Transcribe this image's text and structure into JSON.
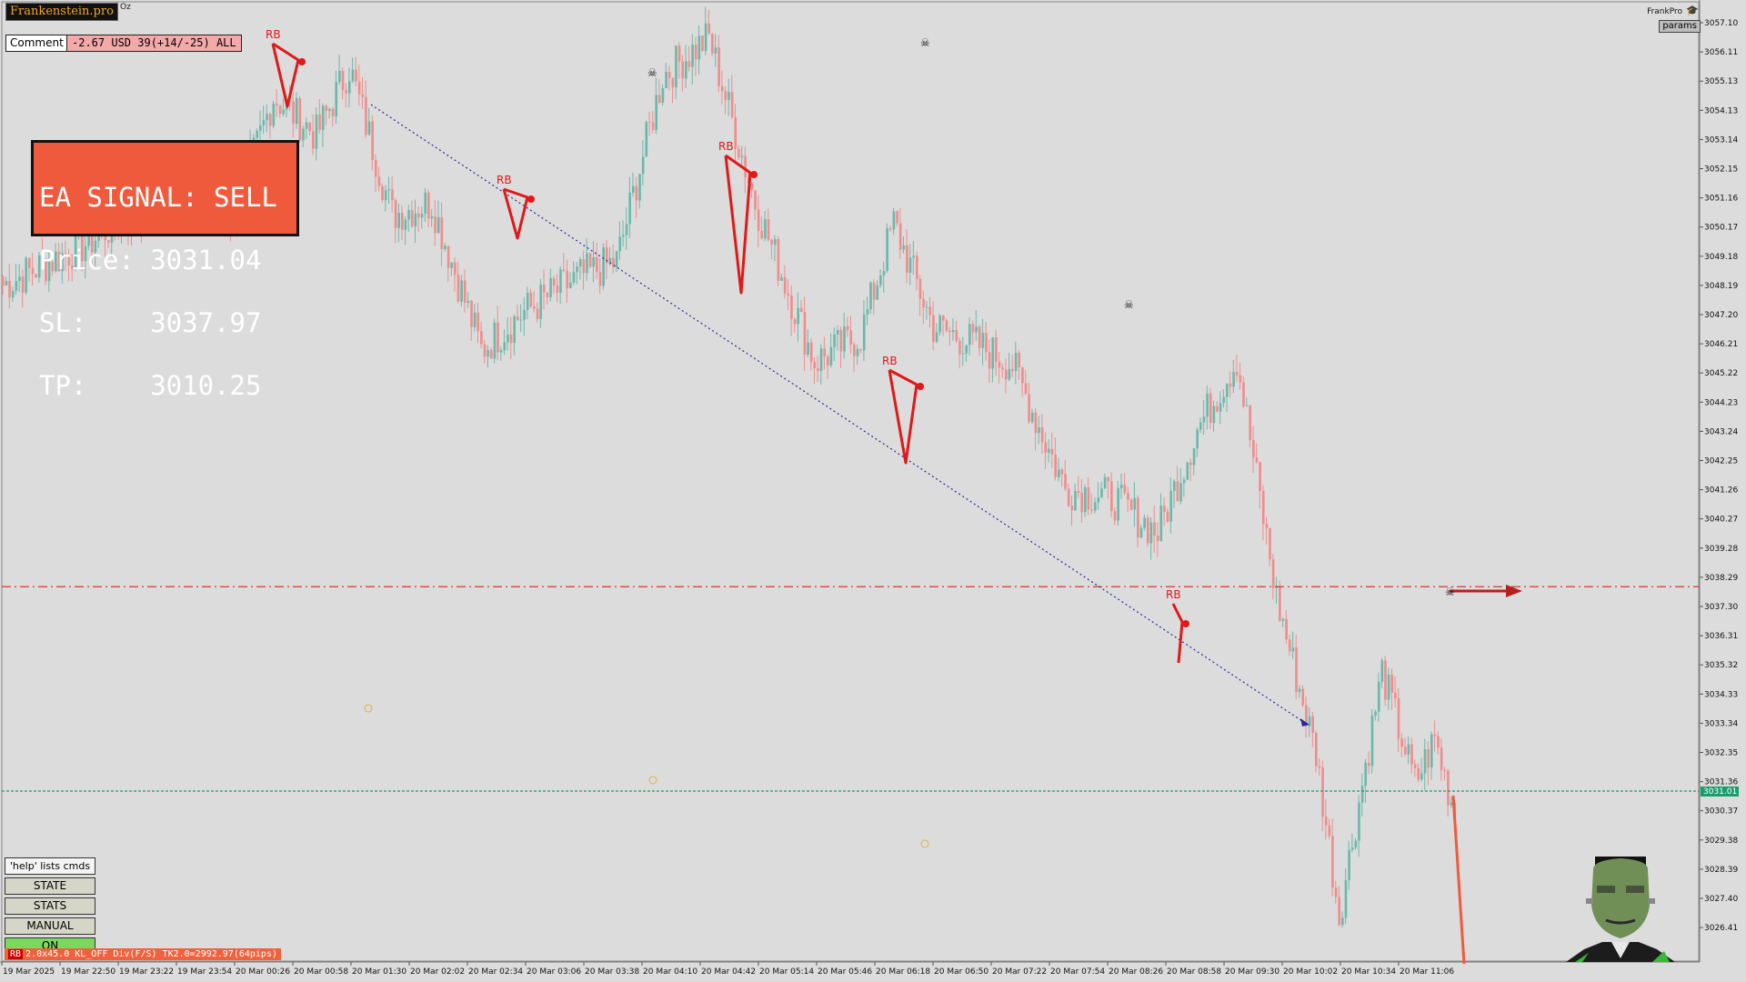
{
  "app": {
    "brand": "Frankenstein.pro",
    "brand_sub": "Oz",
    "profile_label": "FrankPro",
    "params_label": "params",
    "cap_icon": "graduation-cap-icon"
  },
  "header": {
    "comment_label": "Comment",
    "pnl_text": "-2.67 USD 39(+14/-25) ALL"
  },
  "signal": {
    "line1": "EA SIGNAL: SELL",
    "line2": "Price: 3031.04",
    "line3": "SL:    3037.97",
    "line4": "TP:    3010.25"
  },
  "panel": {
    "help": "'help' lists cmds",
    "state": "STATE",
    "stats": "STATS",
    "manual": "MANUAL",
    "on": "ON"
  },
  "status": {
    "tag": "RB",
    "text": "2.0x45.0 KL_OFF Div(F/S) TK2.0=2992.97(64pips)"
  },
  "colors": {
    "background": "#dcdcdc",
    "bull_candle": "#69b9aa",
    "bear_candle": "#f08c8c",
    "pattern": "#e01818",
    "sl_line": "#e03030",
    "price_line": "#1a9d6e",
    "trend_line": "#2a2a9a",
    "signal_box": "#f05a3c",
    "on_button": "#7bd85f"
  },
  "chart_data": {
    "type": "candlestick",
    "symbol_price": "3031.01",
    "price_axis": {
      "ticks": [
        "3057.10",
        "3056.11",
        "3055.13",
        "3054.13",
        "3053.14",
        "3052.15",
        "3051.16",
        "3050.17",
        "3049.18",
        "3048.19",
        "3047.20",
        "3046.21",
        "3045.22",
        "3044.23",
        "3043.24",
        "3042.25",
        "3041.26",
        "3040.27",
        "3039.28",
        "3038.29",
        "3037.30",
        "3036.31",
        "3035.32",
        "3034.33",
        "3033.34",
        "3032.35",
        "3031.36",
        "3030.37",
        "3029.38",
        "3028.39",
        "3027.40",
        "3026.41"
      ],
      "top": 3057.1,
      "step": 0.99
    },
    "time_axis": [
      "19 Mar 2025",
      "19 Mar 22:50",
      "19 Mar 23:22",
      "19 Mar 23:54",
      "20 Mar 00:26",
      "20 Mar 00:58",
      "20 Mar 01:30",
      "20 Mar 02:02",
      "20 Mar 02:34",
      "20 Mar 03:06",
      "20 Mar 03:38",
      "20 Mar 04:10",
      "20 Mar 04:42",
      "20 Mar 05:14",
      "20 Mar 05:46",
      "20 Mar 06:18",
      "20 Mar 06:50",
      "20 Mar 07:22",
      "20 Mar 07:54",
      "20 Mar 08:26",
      "20 Mar 08:58",
      "20 Mar 09:30",
      "20 Mar 10:02",
      "20 Mar 10:34",
      "20 Mar 11:06"
    ],
    "sl_level": 3037.97,
    "current_price": 3031.04,
    "anchors": [
      {
        "i": 0,
        "p": 3048.2
      },
      {
        "i": 25,
        "p": 3049.6
      },
      {
        "i": 50,
        "p": 3051.4
      },
      {
        "i": 70,
        "p": 3050.6
      },
      {
        "i": 82,
        "p": 3054.6
      },
      {
        "i": 95,
        "p": 3053.3
      },
      {
        "i": 105,
        "p": 3055.6
      },
      {
        "i": 118,
        "p": 3050.6
      },
      {
        "i": 130,
        "p": 3051.0
      },
      {
        "i": 145,
        "p": 3046.0
      },
      {
        "i": 158,
        "p": 3047.3
      },
      {
        "i": 175,
        "p": 3048.5
      },
      {
        "i": 186,
        "p": 3049.0
      },
      {
        "i": 200,
        "p": 3055.3
      },
      {
        "i": 214,
        "p": 3056.6
      },
      {
        "i": 228,
        "p": 3051.0
      },
      {
        "i": 246,
        "p": 3045.6
      },
      {
        "i": 260,
        "p": 3046.5
      },
      {
        "i": 270,
        "p": 3050.3
      },
      {
        "i": 282,
        "p": 3046.8
      },
      {
        "i": 295,
        "p": 3046.2
      },
      {
        "i": 306,
        "p": 3045.5
      },
      {
        "i": 322,
        "p": 3041.3
      },
      {
        "i": 336,
        "p": 3041.0
      },
      {
        "i": 350,
        "p": 3039.8
      },
      {
        "i": 362,
        "p": 3043.3
      },
      {
        "i": 374,
        "p": 3045.7
      },
      {
        "i": 386,
        "p": 3037.6
      },
      {
        "i": 398,
        "p": 3032.3
      },
      {
        "i": 405,
        "p": 3026.8
      },
      {
        "i": 412,
        "p": 3031.3
      },
      {
        "i": 418,
        "p": 3035.1
      },
      {
        "i": 428,
        "p": 3031.3
      },
      {
        "i": 434,
        "p": 3032.8
      },
      {
        "i": 440,
        "p": 3030.3
      }
    ],
    "patterns": [
      {
        "label": "RB",
        "pts": [
          [
            300,
            48
          ],
          [
            328,
            66
          ],
          [
            316,
            117
          ],
          [
            300,
            48
          ]
        ]
      },
      {
        "label": "RB",
        "pts": [
          [
            554,
            208
          ],
          [
            580,
            217
          ],
          [
            569,
            262
          ],
          [
            554,
            208
          ]
        ]
      },
      {
        "label": "RB",
        "pts": [
          [
            798,
            171
          ],
          [
            825,
            190
          ],
          [
            815,
            322
          ],
          [
            798,
            171
          ]
        ]
      },
      {
        "label": "RB",
        "pts": [
          [
            978,
            407
          ],
          [
            1008,
            423
          ],
          [
            996,
            509
          ],
          [
            978,
            407
          ]
        ]
      },
      {
        "label": "RB",
        "pts": [
          [
            1290,
            664
          ],
          [
            1300,
            684
          ],
          [
            1296,
            729
          ]
        ]
      }
    ]
  }
}
